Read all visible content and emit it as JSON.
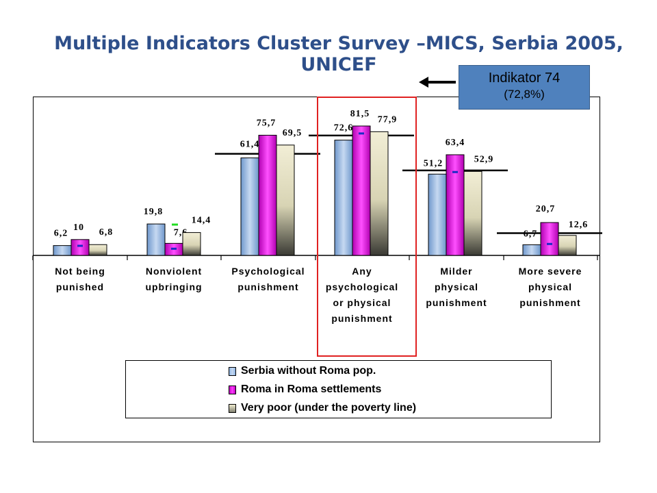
{
  "title": "Multiple Indicators Cluster Survey –MICS, Serbia 2005, UNICEF",
  "callout": {
    "line1": "Indikator 74",
    "line2": "(72,8%)"
  },
  "chart_data": {
    "type": "bar",
    "categories": [
      [
        "Not being",
        "punished"
      ],
      [
        "Nonviolent",
        "upbringing"
      ],
      [
        "Psychological",
        "punishment"
      ],
      [
        "Any",
        "psychological",
        "or physical",
        "punishment"
      ],
      [
        "Milder",
        "physical",
        "punishment"
      ],
      [
        "More severe",
        "physical",
        "punishment"
      ]
    ],
    "series": [
      {
        "name": "Serbia without Roma pop.",
        "values": [
          6.2,
          19.8,
          61.4,
          72.6,
          51.2,
          6.7
        ],
        "labels": [
          "6,2",
          "19,8",
          "61,4",
          "72,6",
          "51,2",
          "6,7"
        ],
        "color": "#8db3e2"
      },
      {
        "name": "Roma in Roma settlements",
        "values": [
          10,
          7.6,
          75.7,
          81.5,
          63.4,
          20.7
        ],
        "labels": [
          "10",
          "7,6",
          "75,7",
          "81,5",
          "63,4",
          "20,7"
        ],
        "color": "#e020e0"
      },
      {
        "name": "Very poor (under the poverty line)",
        "values": [
          6.8,
          14.4,
          69.5,
          77.9,
          52.9,
          12.6
        ],
        "labels": [
          "6,8",
          "14,4",
          "69,5",
          "77,9",
          "52,9",
          "12,6"
        ],
        "color": "#e8e4c0"
      }
    ],
    "reference_lines": [
      null,
      null,
      64.0,
      75.5,
      53.5,
      14.0
    ],
    "highlight_category": 3,
    "legend_position": "bottom",
    "grid": false,
    "ylim": [
      0,
      100
    ]
  }
}
